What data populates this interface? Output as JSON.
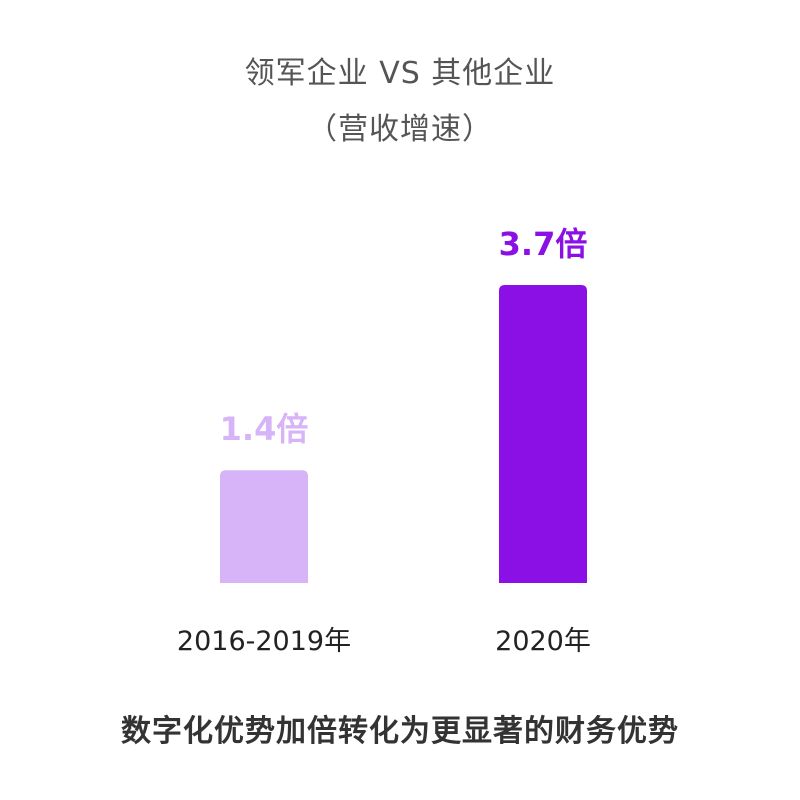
{
  "chart_data": {
    "type": "bar",
    "title": "领军企业 VS 其他企业",
    "subtitle": "（营收增速）",
    "categories": [
      "2016-2019年",
      "2020年"
    ],
    "values": [
      1.4,
      3.7
    ],
    "value_labels": [
      "1.4倍",
      "3.7倍"
    ],
    "bar_colors": [
      "#d7b3f7",
      "#8a10e6"
    ],
    "label_colors": [
      "#d7b3f7",
      "#8a10e6"
    ],
    "ylim": [
      0,
      3.7
    ],
    "grid": false,
    "legend": "none"
  },
  "footer": "数字化优势加倍转化为更显著的财务优势"
}
